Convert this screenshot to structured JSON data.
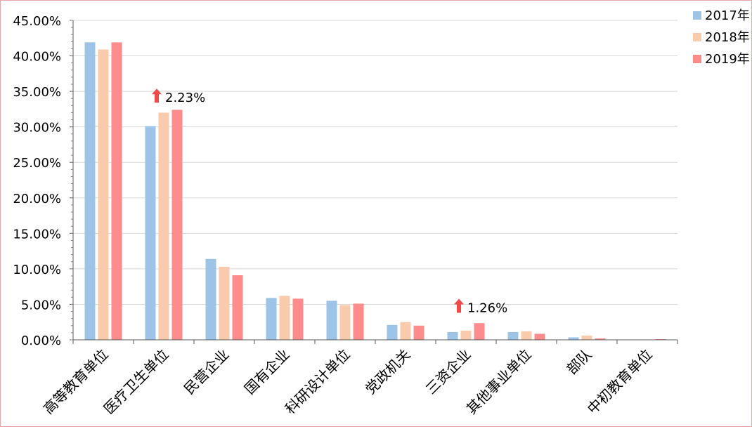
{
  "chart_data": {
    "type": "bar",
    "title": "",
    "xlabel": "",
    "ylabel": "",
    "ylim": [
      0,
      45
    ],
    "y_ticks": [
      "0.00%",
      "5.00%",
      "10.00%",
      "15.00%",
      "20.00%",
      "25.00%",
      "30.00%",
      "35.00%",
      "40.00%",
      "45.00%"
    ],
    "grid": true,
    "legend_position": "top-right",
    "categories": [
      "高等教育单位",
      "医疗卫生单位",
      "民营企业",
      "国有企业",
      "科研设计单位",
      "党政机关",
      "三资企业",
      "其他事业单位",
      "部队",
      "中初教育单位"
    ],
    "series": [
      {
        "name": "2017年",
        "color": "#9dc3e6",
        "values": [
          41.9,
          30.1,
          11.4,
          5.9,
          5.5,
          2.1,
          1.1,
          1.1,
          0.35,
          0.05
        ]
      },
      {
        "name": "2018年",
        "color": "#f8cbad",
        "values": [
          40.9,
          32.0,
          10.3,
          6.2,
          4.9,
          2.5,
          1.3,
          1.2,
          0.6,
          0.05
        ]
      },
      {
        "name": "2019年",
        "color": "#ff8c8c",
        "values": [
          41.9,
          32.4,
          9.1,
          5.8,
          5.1,
          2.0,
          2.35,
          0.85,
          0.2,
          0.1
        ]
      }
    ],
    "annotations": [
      {
        "category": "医疗卫生单位",
        "text": "2.23%",
        "icon": "up-arrow-icon",
        "color": "#f04a4a",
        "at_value": 34.2
      },
      {
        "category": "三资企业",
        "text": "1.26%",
        "icon": "up-arrow-icon",
        "color": "#f04a4a",
        "at_value": 4.6
      }
    ]
  }
}
